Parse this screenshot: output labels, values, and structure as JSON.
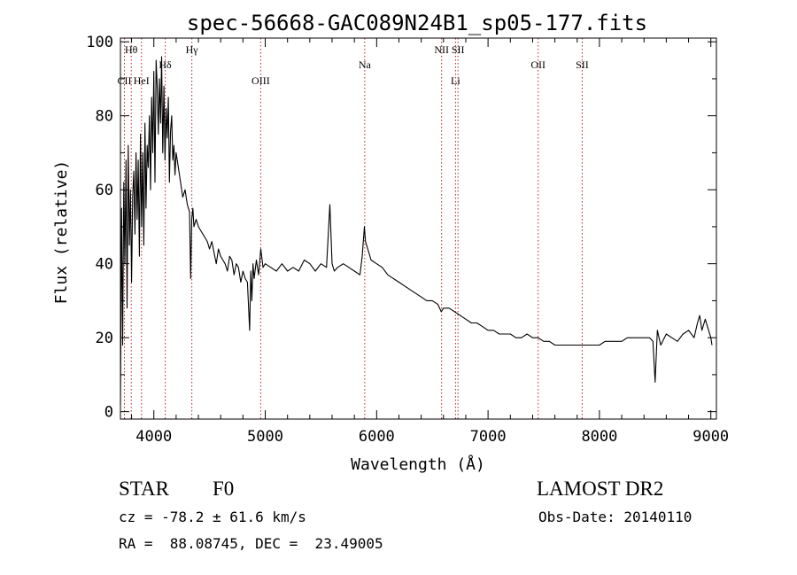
{
  "chart_data": {
    "type": "line",
    "title": "spec-56668-GAC089N24B1_sp05-177.fits",
    "xlabel": "Wavelength (Å)",
    "ylabel": "Flux (relative)",
    "xlim": [
      3700,
      9050
    ],
    "ylim": [
      -2,
      101
    ],
    "xticks": [
      4000,
      5000,
      6000,
      7000,
      8000,
      9000
    ],
    "yticks": [
      0,
      20,
      40,
      60,
      80,
      100
    ],
    "grid": false,
    "lines": [
      {
        "label": "CII",
        "x": 3736,
        "row": 2
      },
      {
        "label": "Hθ",
        "x": 3797,
        "row": 0
      },
      {
        "label": "HeI",
        "x": 3889,
        "row": 2
      },
      {
        "label": "Hδ",
        "x": 4102,
        "row": 1
      },
      {
        "label": "Hγ",
        "x": 4341,
        "row": 0
      },
      {
        "label": "OIII",
        "x": 4959,
        "row": 2
      },
      {
        "label": "Na",
        "x": 5893,
        "row": 1
      },
      {
        "label": "NII",
        "x": 6583,
        "row": 0
      },
      {
        "label": "Li",
        "x": 6708,
        "row": 2
      },
      {
        "label": "SII",
        "x": 6730,
        "row": 0
      },
      {
        "label": "OII",
        "x": 7450,
        "row": 1
      },
      {
        "label": "SII",
        "x": 7845,
        "row": 1
      }
    ],
    "series": [
      {
        "x": [
          3700,
          3710,
          3720,
          3730,
          3740,
          3750,
          3760,
          3770,
          3780,
          3790,
          3800,
          3810,
          3820,
          3830,
          3840,
          3850,
          3860,
          3870,
          3880,
          3890,
          3900,
          3910,
          3920,
          3930,
          3940,
          3950,
          3960,
          3970,
          3980,
          3990,
          4000,
          4010,
          4020,
          4030,
          4040,
          4050,
          4060,
          4070,
          4080,
          4090,
          4100,
          4110,
          4120,
          4130,
          4140,
          4150,
          4160,
          4170,
          4180,
          4190,
          4200,
          4220,
          4240,
          4260,
          4280,
          4300,
          4320,
          4330,
          4340,
          4350,
          4360,
          4380,
          4400,
          4420,
          4440,
          4460,
          4480,
          4500,
          4520,
          4540,
          4560,
          4580,
          4600,
          4620,
          4640,
          4660,
          4680,
          4700,
          4720,
          4740,
          4760,
          4780,
          4800,
          4820,
          4840,
          4860,
          4870,
          4880,
          4890,
          4900,
          4920,
          4940,
          4960,
          4980,
          5000,
          5050,
          5100,
          5150,
          5200,
          5250,
          5300,
          5350,
          5400,
          5450,
          5500,
          5550,
          5580,
          5600,
          5620,
          5650,
          5700,
          5750,
          5800,
          5850,
          5870,
          5890,
          5900,
          5920,
          5950,
          6000,
          6050,
          6100,
          6150,
          6200,
          6250,
          6300,
          6350,
          6400,
          6450,
          6500,
          6550,
          6580,
          6600,
          6650,
          6700,
          6750,
          6800,
          6850,
          6900,
          6950,
          7000,
          7050,
          7100,
          7150,
          7200,
          7250,
          7300,
          7350,
          7400,
          7450,
          7500,
          7550,
          7600,
          7650,
          7700,
          7750,
          7800,
          7850,
          7900,
          7950,
          8000,
          8050,
          8100,
          8150,
          8200,
          8250,
          8300,
          8350,
          8400,
          8450,
          8480,
          8500,
          8520,
          8550,
          8600,
          8650,
          8700,
          8750,
          8800,
          8850,
          8880,
          8900,
          8920,
          8950,
          9000,
          9010
        ],
        "y": [
          2,
          55,
          18,
          62,
          40,
          68,
          28,
          72,
          45,
          60,
          35,
          58,
          65,
          48,
          70,
          52,
          68,
          42,
          75,
          50,
          70,
          45,
          78,
          55,
          72,
          66,
          80,
          60,
          85,
          70,
          92,
          62,
          95,
          88,
          75,
          90,
          78,
          96,
          70,
          88,
          68,
          82,
          74,
          85,
          62,
          76,
          80,
          68,
          72,
          64,
          70,
          66,
          62,
          58,
          60,
          56,
          54,
          36,
          52,
          55,
          50,
          52,
          50,
          49,
          48,
          47,
          46,
          44,
          46,
          43,
          40,
          44,
          42,
          41,
          40,
          38,
          42,
          41,
          37,
          40,
          39,
          35,
          38,
          36,
          35,
          22,
          38,
          30,
          40,
          36,
          41,
          37,
          44,
          39,
          40,
          39,
          38,
          40,
          38,
          39,
          38,
          41,
          40,
          38,
          40,
          39,
          56,
          40,
          38,
          39,
          40,
          39,
          38,
          37,
          42,
          50,
          46,
          44,
          41,
          40,
          39,
          37,
          36,
          35,
          34,
          33,
          32,
          31,
          30,
          30,
          29,
          27,
          28,
          28,
          27,
          26,
          25,
          24,
          24,
          23,
          22,
          22,
          21,
          21,
          21,
          20,
          20,
          21,
          20,
          20,
          19,
          19,
          18,
          18,
          18,
          18,
          18,
          18,
          18,
          18,
          18,
          19,
          19,
          19,
          19,
          20,
          20,
          20,
          20,
          20,
          19,
          8,
          22,
          18,
          21,
          20,
          19,
          21,
          22,
          20,
          24,
          26,
          22,
          25,
          20,
          18
        ]
      }
    ]
  },
  "info": {
    "object_class": "STAR",
    "subclass": "F0",
    "survey": "LAMOST DR2",
    "redshift_line": "cz = -78.2 ± 61.6 km/s",
    "obs_date_line": "Obs-Date: 20140110",
    "coords_line": "RA =  88.08745, DEC =  23.49005"
  }
}
